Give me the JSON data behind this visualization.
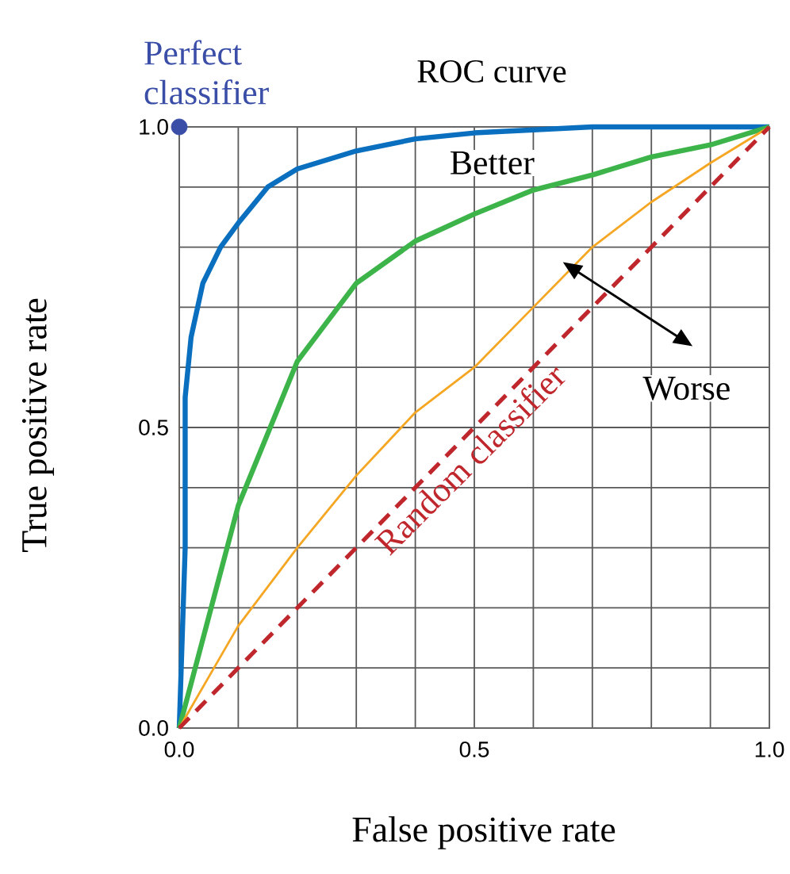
{
  "chart_data": {
    "type": "line",
    "title": "ROC curve",
    "xlabel": "False positive rate",
    "ylabel": "True positive rate",
    "xlim": [
      0,
      1
    ],
    "ylim": [
      0,
      1
    ],
    "xticks": [
      {
        "value": 0,
        "label": "0.0"
      },
      {
        "value": 0.1,
        "label": null
      },
      {
        "value": 0.2,
        "label": null
      },
      {
        "value": 0.3,
        "label": null
      },
      {
        "value": 0.4,
        "label": null
      },
      {
        "value": 0.5,
        "label": "0.5"
      },
      {
        "value": 0.6,
        "label": null
      },
      {
        "value": 0.7,
        "label": null
      },
      {
        "value": 0.8,
        "label": null
      },
      {
        "value": 0.9,
        "label": null
      },
      {
        "value": 1,
        "label": "1.0"
      }
    ],
    "yticks": [
      {
        "value": 0,
        "label": "0.0"
      },
      {
        "value": 0.1,
        "label": null
      },
      {
        "value": 0.2,
        "label": null
      },
      {
        "value": 0.3,
        "label": null
      },
      {
        "value": 0.4,
        "label": null
      },
      {
        "value": 0.5,
        "label": "0.5"
      },
      {
        "value": 0.6,
        "label": null
      },
      {
        "value": 0.7,
        "label": null
      },
      {
        "value": 0.8,
        "label": null
      },
      {
        "value": 0.9,
        "label": null
      },
      {
        "value": 1,
        "label": "1.0"
      }
    ],
    "grid": true,
    "annotations": [
      "Better",
      "Worse"
    ],
    "series": [
      {
        "color": "#0a6fbf",
        "marker": "none",
        "line_style": "solid",
        "x": [
          0,
          0.01,
          0.01,
          0.02,
          0.04,
          0.07,
          0.1,
          0.15,
          0.2,
          0.3,
          0.4,
          0.5,
          0.7,
          1
        ],
        "values": [
          0,
          0.3,
          0.55,
          0.65,
          0.74,
          0.8,
          0.84,
          0.9,
          0.93,
          0.96,
          0.98,
          0.99,
          1,
          1
        ]
      },
      {
        "color": "#3cb44a",
        "marker": "none",
        "line_style": "solid",
        "x": [
          0,
          0.1,
          0.2,
          0.3,
          0.4,
          0.5,
          0.6,
          0.7,
          0.8,
          0.9,
          1
        ],
        "values": [
          0,
          0.37,
          0.61,
          0.74,
          0.81,
          0.855,
          0.895,
          0.92,
          0.95,
          0.97,
          1
        ]
      },
      {
        "color": "#f5a623",
        "marker": "none",
        "line_style": "solid",
        "x": [
          0,
          0.1,
          0.2,
          0.3,
          0.4,
          0.5,
          0.6,
          0.7,
          0.8,
          0.9,
          1
        ],
        "values": [
          0,
          0.17,
          0.3,
          0.42,
          0.525,
          0.6,
          0.7,
          0.8,
          0.875,
          0.94,
          1
        ]
      },
      {
        "name": "Random classifier",
        "color": "#c0272d",
        "marker": "none",
        "line_style": "dashed",
        "x": [
          0,
          1
        ],
        "values": [
          0,
          1
        ]
      },
      {
        "type": "scatter",
        "name": "Perfect classifier",
        "color": "#3a4ea8",
        "marker": "circle",
        "x": [
          0
        ],
        "values": [
          1
        ]
      }
    ]
  }
}
